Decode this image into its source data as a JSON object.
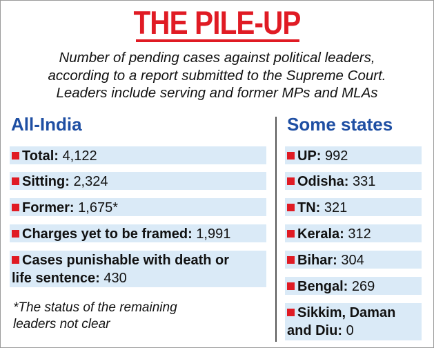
{
  "title": "THE PILE-UP",
  "subtitle": [
    "Number of pending cases against political leaders,",
    "according to a report submitted to the Supreme Court.",
    "Leaders include serving and former MPs and MLAs"
  ],
  "all_india": {
    "heading": "All-India",
    "items": [
      {
        "label": "Total:",
        "value": "4,122"
      },
      {
        "label": "Sitting:",
        "value": "2,324"
      },
      {
        "label": "Former:",
        "value": "1,675*"
      },
      {
        "label": "Charges yet to be framed:",
        "value": "1,991"
      },
      {
        "label_line1": "Cases punishable with death or",
        "label_line2": "life sentence:",
        "value": "430"
      }
    ],
    "footnote": [
      "*The status of the remaining",
      "leaders not clear"
    ]
  },
  "states": {
    "heading": "Some states",
    "items": [
      {
        "label": "UP:",
        "value": "992"
      },
      {
        "label": "Odisha:",
        "value": "331"
      },
      {
        "label": "TN:",
        "value": "321"
      },
      {
        "label": "Kerala:",
        "value": "312"
      },
      {
        "label": "Bihar:",
        "value": "304"
      },
      {
        "label": "Bengal:",
        "value": "269"
      },
      {
        "label_line1": "Sikkim, Daman",
        "label_line2": "and Diu:",
        "value": "0"
      }
    ]
  },
  "colors": {
    "accent_red": "#e01b24",
    "heading_blue": "#1f4fa3",
    "row_bg": "#daeaf7"
  }
}
